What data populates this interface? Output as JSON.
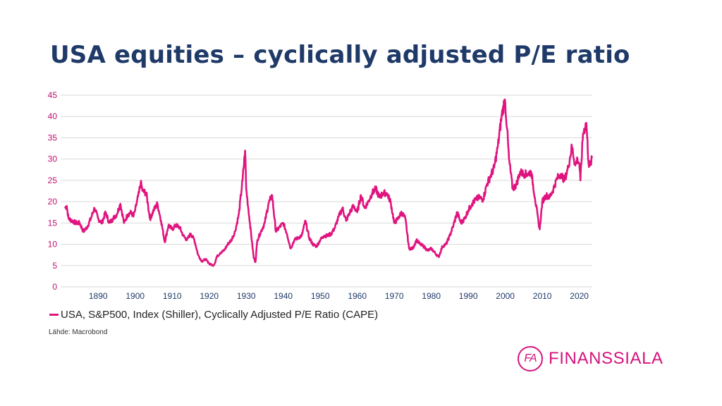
{
  "page": {
    "title": "USA equities – cyclically adjusted P/E ratio",
    "source": "Lähde: Macrobond",
    "brand": {
      "mark": "FA",
      "name": "FINANSSIALA"
    }
  },
  "colors": {
    "series": "#e0147f",
    "axis_text": "#1f3a68",
    "y_axis_text": "#c01070",
    "grid": "#d9d9d9",
    "brand": "#d4147f"
  },
  "chart_data": {
    "type": "line",
    "title": "",
    "xlabel": "",
    "ylabel": "",
    "xlim": [
      1881,
      2023.5
    ],
    "ylim": [
      0,
      45
    ],
    "grid": true,
    "legend_position": "bottom-left",
    "y_ticks": [
      "0",
      "5",
      "10",
      "15",
      "20",
      "25",
      "30",
      "35",
      "40",
      "45"
    ],
    "x_ticks": [
      "1890",
      "1900",
      "1910",
      "1920",
      "1930",
      "1940",
      "1950",
      "1960",
      "1970",
      "1980",
      "1990",
      "2000",
      "2010",
      "2020"
    ],
    "series": [
      {
        "name": "USA, S&P500, Index (Shiller), Cyclically Adjusted P/E Ratio (CAPE)",
        "x": [
          1881,
          1881.5,
          1882,
          1883,
          1884,
          1885,
          1886,
          1887,
          1888,
          1889,
          1890,
          1891,
          1892,
          1893,
          1894,
          1895,
          1896,
          1897,
          1898,
          1899,
          1899.5,
          1900,
          1901,
          1901.5,
          1902,
          1903,
          1903.5,
          1904,
          1905,
          1906,
          1907,
          1908,
          1909,
          1910,
          1911,
          1912,
          1913,
          1914,
          1915,
          1916,
          1917,
          1918,
          1919,
          1920,
          1921,
          1921.5,
          1922,
          1923,
          1924,
          1925,
          1926,
          1927,
          1928,
          1929,
          1929.7,
          1930,
          1931,
          1932,
          1932.5,
          1933,
          1934,
          1935,
          1936,
          1937,
          1938,
          1939,
          1940,
          1941,
          1942,
          1943,
          1944,
          1945,
          1946,
          1947,
          1948,
          1949,
          1950,
          1951,
          1952,
          1953,
          1954,
          1955,
          1956,
          1957,
          1958,
          1959,
          1960,
          1961,
          1962,
          1963,
          1964,
          1965,
          1966,
          1967,
          1968,
          1969,
          1970,
          1971,
          1972,
          1973,
          1974,
          1975,
          1976,
          1977,
          1978,
          1979,
          1980,
          1981,
          1982,
          1983,
          1984,
          1985,
          1986,
          1987,
          1988,
          1989,
          1990,
          1991,
          1992,
          1993,
          1994,
          1995,
          1996,
          1997,
          1998,
          1999,
          1999.9,
          2000.5,
          2001,
          2002,
          2003,
          2004,
          2005,
          2006,
          2007,
          2008,
          2009,
          2009.3,
          2010,
          2011,
          2012,
          2013,
          2014,
          2015,
          2016,
          2017,
          2018,
          2018.9,
          2019.5,
          2020,
          2020.3,
          2021,
          2021.9,
          2022.5,
          2023,
          2023.5
        ],
        "values": [
          18.5,
          19,
          16,
          15.5,
          15,
          15,
          13,
          14,
          16,
          18.5,
          16,
          15,
          17.5,
          15,
          16,
          17,
          19.5,
          15,
          17,
          17.5,
          16.5,
          18,
          22,
          24.5,
          22.5,
          22,
          19,
          16,
          18,
          19.5,
          15.5,
          10.5,
          14.5,
          13.5,
          14.5,
          14,
          12,
          11,
          12.5,
          11,
          7.5,
          6,
          6.5,
          5.5,
          5,
          5.5,
          7,
          8,
          8.5,
          10,
          11,
          13,
          17,
          25,
          32,
          23,
          15,
          7,
          5.8,
          11,
          13,
          15,
          19.5,
          21.5,
          13,
          14,
          15,
          12.5,
          9,
          11,
          11.5,
          12,
          15.5,
          11.5,
          10,
          9.5,
          11,
          12,
          12,
          12.5,
          14,
          16.5,
          18.5,
          15.5,
          17.5,
          19,
          17.5,
          21.5,
          18.5,
          20,
          22,
          23,
          21,
          22,
          22,
          20,
          15,
          16,
          17.5,
          16,
          9,
          9,
          11,
          10,
          9.5,
          8.5,
          9,
          8,
          7,
          9.5,
          10,
          12,
          14.5,
          17.5,
          15,
          16,
          18,
          19.5,
          20.5,
          21,
          20.5,
          24,
          26,
          28,
          33,
          40,
          44,
          37,
          30,
          23,
          24,
          27,
          26.5,
          26.5,
          27,
          21,
          15,
          13.5,
          20,
          21.5,
          21,
          23,
          25.5,
          26.5,
          25,
          28,
          33,
          28.5,
          30,
          29,
          25,
          36,
          38.5,
          29,
          28.5,
          30.5
        ]
      }
    ]
  }
}
